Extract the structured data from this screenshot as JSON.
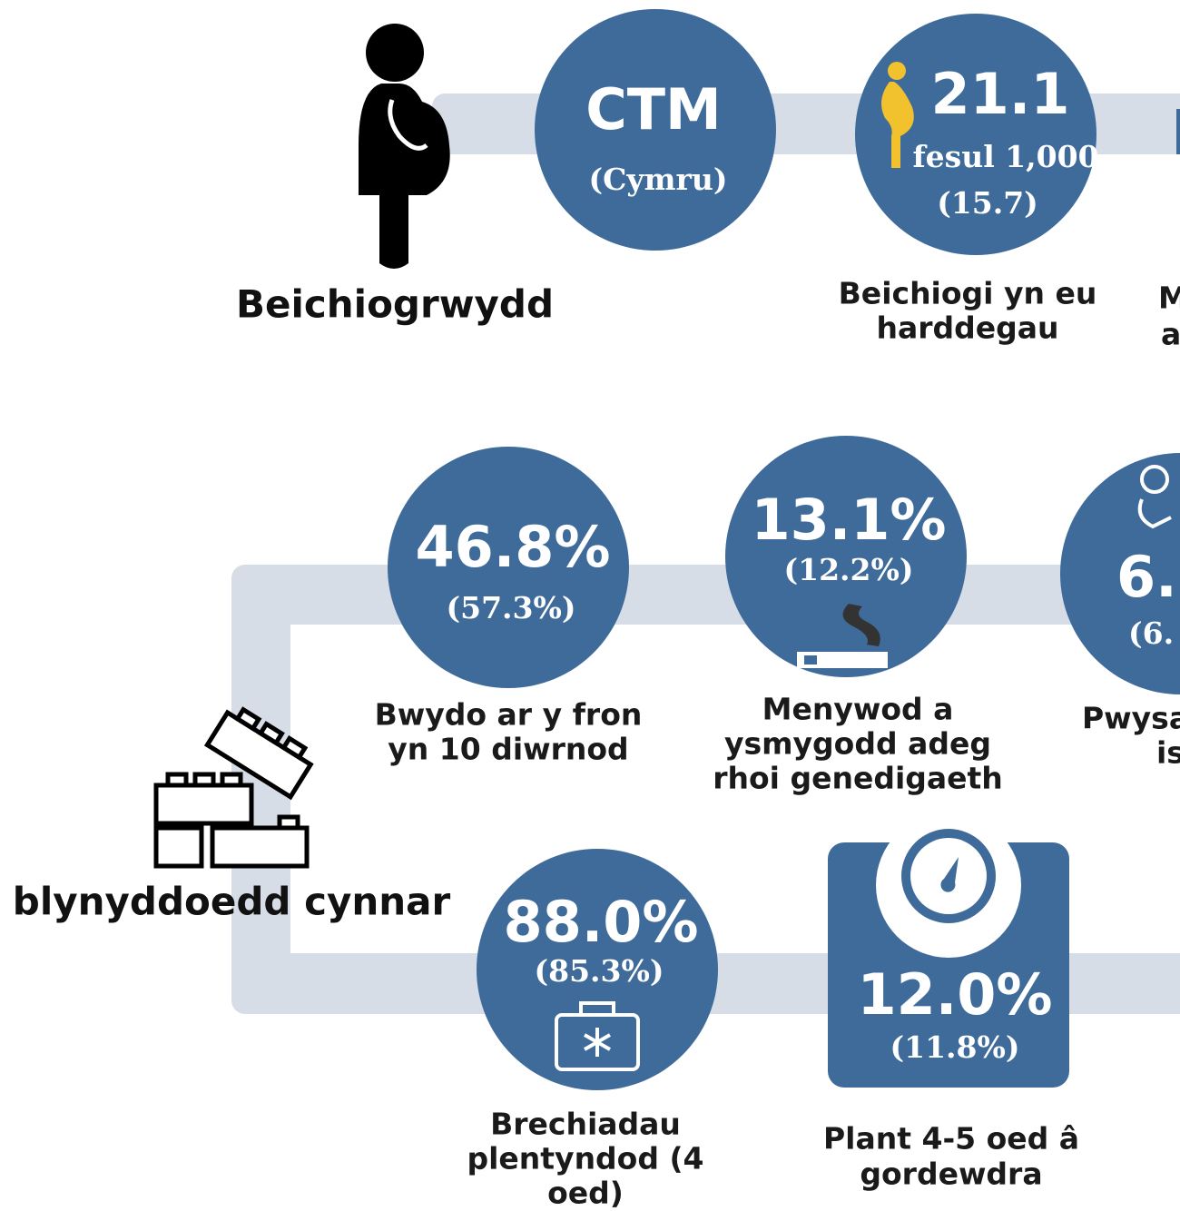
{
  "pregnancy": {
    "title": "Beichiogrwydd",
    "header": {
      "label": "CTM",
      "sublabel": "(Cymru)"
    },
    "items": [
      {
        "value": "21.1",
        "unit": "fesul 1,000",
        "comparison": "(15.7)",
        "caption": [
          "Beichiogi  yn eu",
          "harddegau"
        ]
      },
      {
        "caption": [
          "M",
          "a"
        ]
      }
    ]
  },
  "early_years": {
    "title": "blynyddoedd cynnar",
    "items": [
      {
        "value": "46.8%",
        "comparison": "(57.3%)",
        "caption": [
          "Bwydo ar y fron",
          "yn 10 diwrnod"
        ]
      },
      {
        "value": "13.1%",
        "comparison": "(12.2%)",
        "caption": [
          "Menywod a",
          "ysmygodd  adeg",
          "rhoi genedigaeth"
        ]
      },
      {
        "value": "6.",
        "comparison": "(6.",
        "caption": [
          "Pwysa",
          "is"
        ]
      },
      {
        "value": "88.0%",
        "comparison": "(85.3%)",
        "caption": [
          "Brechiadau",
          "plentyndod  (4",
          "oed)"
        ]
      },
      {
        "value": "12.0%",
        "comparison": "(11.8%)",
        "caption": [
          "Plant 4-5 oed â",
          "gordewdra"
        ]
      }
    ]
  }
}
